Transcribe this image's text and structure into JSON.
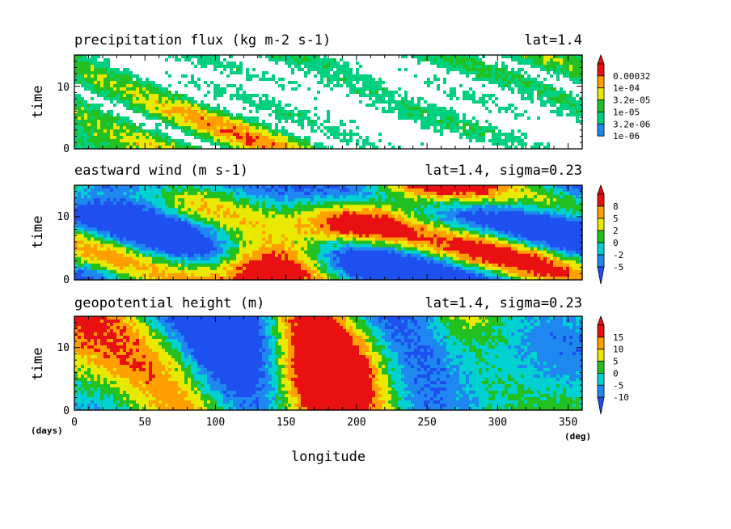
{
  "chart_data": [
    {
      "type": "heatmap",
      "title": "precipitation flux (kg m-2 s-1)",
      "subtitle": "lat=1.4",
      "ylabel": "time",
      "y_ticks": [
        "0",
        "10"
      ],
      "ylim": [
        0,
        15
      ],
      "xlim": [
        0,
        360
      ],
      "colorbar_labels": [
        "0.00032",
        "1e-04",
        "3.2e-05",
        "1e-05",
        "3.2e-06",
        "1e-06"
      ],
      "colors": [
        "#ffffff",
        "#1e88f0",
        "#00d080",
        "#22c020",
        "#e8e800",
        "#ffa000",
        "#e81010"
      ]
    },
    {
      "type": "heatmap",
      "title": "eastward wind (m s-1)",
      "subtitle": "lat=1.4, sigma=0.23",
      "ylabel": "time",
      "y_ticks": [
        "0",
        "10"
      ],
      "ylim": [
        0,
        15
      ],
      "xlim": [
        0,
        360
      ],
      "colorbar_labels": [
        "8",
        "5",
        "2",
        "0",
        "-2",
        "-5"
      ],
      "colors": [
        "#1e50f0",
        "#1e88f0",
        "#00d0d0",
        "#22c020",
        "#e8e800",
        "#ffa000",
        "#e81010"
      ]
    },
    {
      "type": "heatmap",
      "title": "geopotential height (m)",
      "subtitle": "lat=1.4, sigma=0.23",
      "ylabel": "time",
      "y_ticks": [
        "0",
        "10"
      ],
      "ylim": [
        0,
        15
      ],
      "xlim": [
        0,
        360
      ],
      "x_ticks": [
        "0",
        "50",
        "100",
        "150",
        "200",
        "250",
        "300",
        "350"
      ],
      "xlabel": "longitude",
      "x_unit": "(deg)",
      "y_unit": "(days)",
      "colorbar_labels": [
        "15",
        "10",
        "5",
        "0",
        "-5",
        "-10"
      ],
      "colors": [
        "#1e50f0",
        "#1e88f0",
        "#00d0d0",
        "#22c020",
        "#e8e800",
        "#ffa000",
        "#e81010"
      ]
    }
  ]
}
